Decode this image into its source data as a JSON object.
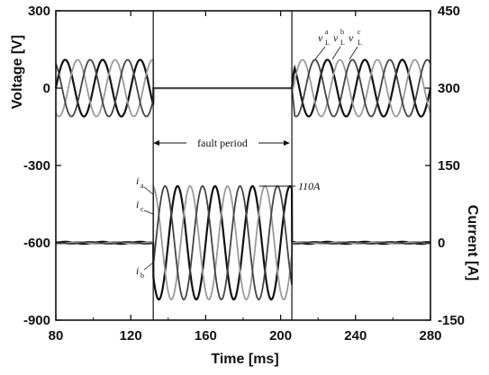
{
  "chart_data": {
    "type": "line",
    "xlabel": "Time [ms]",
    "ylabel_left": "Voltage [V]",
    "ylabel_right": "Current [A]",
    "xlim": [
      80,
      280
    ],
    "ylim_left": [
      -900,
      300
    ],
    "ylim_right": [
      -150,
      450
    ],
    "x_ticks": [
      "80",
      "120",
      "160",
      "200",
      "240",
      "280"
    ],
    "y_ticks_left": [
      "300",
      "0",
      "-300",
      "-600",
      "-900"
    ],
    "y_ticks_right": [
      "450",
      "300",
      "150",
      "0",
      "-150"
    ],
    "fault_start_ms": 132,
    "fault_end_ms": 206,
    "frequency_hz": 50,
    "voltage": {
      "amplitude_v": 110,
      "offset_v": 0,
      "phases": [
        {
          "name": "v_L^a",
          "color": "#111111",
          "phase_deg": 0
        },
        {
          "name": "v_L^b",
          "color": "#9a9a9a",
          "phase_deg": -120
        },
        {
          "name": "v_L^c",
          "color": "#444444",
          "phase_deg": 120
        }
      ]
    },
    "current": {
      "fault_amplitude_a": 110,
      "normal_amplitude_a": 2,
      "phases": [
        {
          "name": "i_a",
          "color": "#111111",
          "phase_deg": 0
        },
        {
          "name": "i_b",
          "color": "#9a9a9a",
          "phase_deg": -120
        },
        {
          "name": "i_c",
          "color": "#444444",
          "phase_deg": 120
        }
      ]
    },
    "grid": false
  },
  "annotations": {
    "fault_period": "fault period",
    "current_peak": "110A",
    "voltage_labels": [
      {
        "main": "v",
        "sub": "L",
        "sup": "a"
      },
      {
        "main": "v",
        "sub": "L",
        "sup": "b"
      },
      {
        "main": "v",
        "sub": "L",
        "sup": "c"
      }
    ],
    "current_labels": [
      {
        "main": "i",
        "sub": "a"
      },
      {
        "main": "i",
        "sub": "c"
      },
      {
        "main": "i",
        "sub": "b"
      }
    ]
  }
}
